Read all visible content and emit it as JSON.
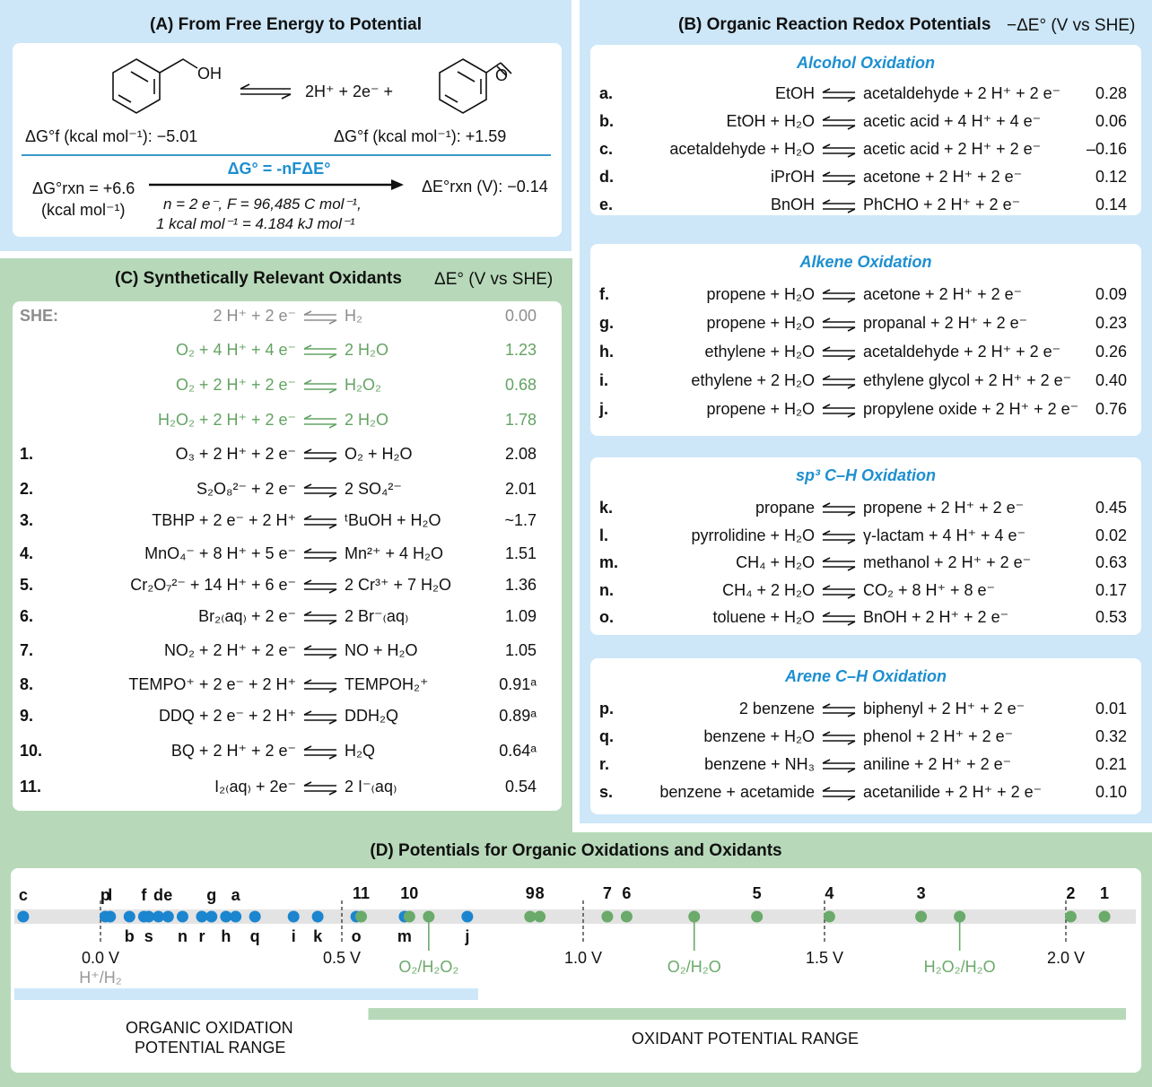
{
  "panel_a": {
    "title": "(A) From Free Energy to Potential",
    "reactant_label": "OH",
    "products_text": "2H⁺ + 2e⁻ +",
    "product_label": "O",
    "dg_reactant": "ΔG°f (kcal mol⁻¹): −5.01",
    "dg_product": "ΔG°f (kcal mol⁻¹): +1.59",
    "dg_rxn": "ΔG°rxn = +6.6",
    "dg_rxn_unit": "(kcal mol⁻¹)",
    "equation": "ΔG° = -nFΔE°",
    "conditions_1": "n = 2 e⁻, F = 96,485 C mol⁻¹,",
    "conditions_2": "1 kcal mol⁻¹ = 4.184 kJ mol⁻¹",
    "de_rxn": "ΔE°rxn (V): −0.14"
  },
  "panel_b": {
    "title": "(B) Organic Reaction Redox Potentials",
    "title_unit": "−ΔE°  (V vs SHE)",
    "groups": [
      {
        "heading": "Alcohol Oxidation",
        "rows": [
          {
            "id": "a.",
            "lhs": "EtOH",
            "rhs": "acetaldehyde + 2 H⁺ + 2 e⁻",
            "val": "0.28"
          },
          {
            "id": "b.",
            "lhs": "EtOH + H₂O",
            "rhs": "acetic acid + 4 H⁺ + 4 e⁻",
            "val": "0.06"
          },
          {
            "id": "c.",
            "lhs": "acetaldehyde + H₂O",
            "rhs": "acetic acid + 2 H⁺ + 2 e⁻",
            "val": "–0.16"
          },
          {
            "id": "d.",
            "lhs": "iPrOH",
            "rhs": "acetone + 2 H⁺ + 2 e⁻",
            "val": "0.12"
          },
          {
            "id": "e.",
            "lhs": "BnOH",
            "rhs": "PhCHO + 2 H⁺ + 2 e⁻",
            "val": "0.14"
          }
        ]
      },
      {
        "heading": "Alkene Oxidation",
        "rows": [
          {
            "id": "f.",
            "lhs": "propene + H₂O",
            "rhs": "acetone + 2 H⁺ + 2 e⁻",
            "val": "0.09"
          },
          {
            "id": "g.",
            "lhs": "propene + H₂O",
            "rhs": "propanal + 2 H⁺ + 2 e⁻",
            "val": "0.23"
          },
          {
            "id": "h.",
            "lhs": "ethylene + H₂O",
            "rhs": "acetaldehyde + 2 H⁺ + 2 e⁻",
            "val": "0.26"
          },
          {
            "id": "i.",
            "lhs": "ethylene + 2 H₂O",
            "rhs": "ethylene glycol + 2 H⁺ + 2 e⁻",
            "val": "0.40"
          },
          {
            "id": "j.",
            "lhs": "propene + H₂O",
            "rhs": "propylene oxide + 2 H⁺ + 2 e⁻",
            "val": "0.76"
          }
        ]
      },
      {
        "heading": "sp³ C–H Oxidation",
        "rows": [
          {
            "id": "k.",
            "lhs": "propane",
            "rhs": "propene + 2 H⁺ + 2 e⁻",
            "val": "0.45"
          },
          {
            "id": "l.",
            "lhs": "pyrrolidine + H₂O",
            "rhs": "γ-lactam + 4 H⁺ + 4 e⁻",
            "val": "0.02"
          },
          {
            "id": "m.",
            "lhs": "CH₄ + H₂O",
            "rhs": "methanol + 2 H⁺ + 2 e⁻",
            "val": "0.63"
          },
          {
            "id": "n.",
            "lhs": "CH₄ + 2 H₂O",
            "rhs": "CO₂ + 8 H⁺ + 8 e⁻",
            "val": "0.17"
          },
          {
            "id": "o.",
            "lhs": "toluene + H₂O",
            "rhs": "BnOH + 2 H⁺ + 2 e⁻",
            "val": "0.53"
          }
        ]
      },
      {
        "heading": "Arene C–H Oxidation",
        "rows": [
          {
            "id": "p.",
            "lhs": "2 benzene",
            "rhs": "biphenyl + 2 H⁺ + 2 e⁻",
            "val": "0.01"
          },
          {
            "id": "q.",
            "lhs": "benzene + H₂O",
            "rhs": "phenol + 2 H⁺ + 2 e⁻",
            "val": "0.32"
          },
          {
            "id": "r.",
            "lhs": "benzene + NH₃",
            "rhs": "aniline + 2 H⁺ + 2 e⁻",
            "val": "0.21"
          },
          {
            "id": "s.",
            "lhs": "benzene + acetamide",
            "rhs": "acetanilide + 2 H⁺ + 2 e⁻",
            "val": "0.10"
          }
        ]
      }
    ]
  },
  "panel_c": {
    "title": "(C) Synthetically Relevant Oxidants",
    "title_unit": "ΔE°  (V vs SHE)",
    "rows": [
      {
        "id": "SHE:",
        "lhs": "2 H⁺ + 2 e⁻",
        "rhs": "H₂",
        "val": "0.00",
        "style": "gray"
      },
      {
        "id": "",
        "lhs": "O₂ + 4 H⁺ + 4 e⁻",
        "rhs": "2 H₂O",
        "val": "1.23",
        "style": "green"
      },
      {
        "id": "",
        "lhs": "O₂ + 2 H⁺ + 2 e⁻",
        "rhs": "H₂O₂",
        "val": "0.68",
        "style": "green"
      },
      {
        "id": "",
        "lhs": "H₂O₂ + 2 H⁺ + 2 e⁻",
        "rhs": "2 H₂O",
        "val": "1.78",
        "style": "green"
      },
      {
        "id": "1.",
        "lhs": "O₃ + 2 H⁺ + 2 e⁻",
        "rhs": "O₂ + H₂O",
        "val": "2.08",
        "style": ""
      },
      {
        "id": "2.",
        "lhs": "S₂O₈²⁻ + 2 e⁻",
        "rhs": "2 SO₄²⁻",
        "val": "2.01",
        "style": ""
      },
      {
        "id": "3.",
        "lhs": "TBHP + 2 e⁻ + 2 H⁺",
        "rhs": "ᵗBuOH + H₂O",
        "val": "~1.7",
        "style": ""
      },
      {
        "id": "4.",
        "lhs": "MnO₄⁻ + 8 H⁺ + 5 e⁻",
        "rhs": "Mn²⁺ + 4 H₂O",
        "val": "1.51",
        "style": ""
      },
      {
        "id": "5.",
        "lhs": "Cr₂O₇²⁻ + 14 H⁺ + 6 e⁻",
        "rhs": "2 Cr³⁺ + 7 H₂O",
        "val": "1.36",
        "style": ""
      },
      {
        "id": "6.",
        "lhs": "Br₂₍aq₎ + 2 e⁻",
        "rhs": "2 Br⁻₍aq₎",
        "val": "1.09",
        "style": ""
      },
      {
        "id": "7.",
        "lhs": "NO₂ + 2 H⁺ + 2 e⁻",
        "rhs": "NO + H₂O",
        "val": "1.05",
        "style": ""
      },
      {
        "id": "8.",
        "lhs": "TEMPO⁺ + 2 e⁻ + 2 H⁺",
        "rhs": "TEMPOH₂⁺",
        "val": "0.91ᵃ",
        "style": ""
      },
      {
        "id": "9.",
        "lhs": "DDQ + 2 e⁻ + 2 H⁺",
        "rhs": "DDH₂Q",
        "val": "0.89ᵃ",
        "style": ""
      },
      {
        "id": "10.",
        "lhs": "BQ + 2 H⁺ + 2 e⁻",
        "rhs": "H₂Q",
        "val": "0.64ᵃ",
        "style": ""
      },
      {
        "id": "11.",
        "lhs": "I₂₍aq₎ + 2e⁻",
        "rhs": "2 I⁻₍aq₎",
        "val": "0.54",
        "style": ""
      }
    ]
  },
  "panel_d": {
    "title": "(D) Potentials for Organic Oxidations and Oxidants",
    "organic_points": [
      {
        "label": "c",
        "v": -0.16,
        "pos": "top"
      },
      {
        "label": "p",
        "v": 0.01,
        "pos": "top"
      },
      {
        "label": "l",
        "v": 0.02,
        "pos": "top"
      },
      {
        "label": "b",
        "v": 0.06,
        "pos": "bottom"
      },
      {
        "label": "f",
        "v": 0.09,
        "pos": "top"
      },
      {
        "label": "s",
        "v": 0.1,
        "pos": "bottom"
      },
      {
        "label": "d",
        "v": 0.12,
        "pos": "top"
      },
      {
        "label": "e",
        "v": 0.14,
        "pos": "top"
      },
      {
        "label": "n",
        "v": 0.17,
        "pos": "bottom"
      },
      {
        "label": "r",
        "v": 0.21,
        "pos": "bottom"
      },
      {
        "label": "g",
        "v": 0.23,
        "pos": "top"
      },
      {
        "label": "h",
        "v": 0.26,
        "pos": "bottom"
      },
      {
        "label": "a",
        "v": 0.28,
        "pos": "top"
      },
      {
        "label": "q",
        "v": 0.32,
        "pos": "bottom"
      },
      {
        "label": "i",
        "v": 0.4,
        "pos": "bottom"
      },
      {
        "label": "k",
        "v": 0.45,
        "pos": "bottom"
      },
      {
        "label": "o",
        "v": 0.53,
        "pos": "bottom"
      },
      {
        "label": "m",
        "v": 0.63,
        "pos": "bottom"
      },
      {
        "label": "j",
        "v": 0.76,
        "pos": "bottom"
      }
    ],
    "oxidant_points": [
      {
        "label": "11",
        "v": 0.54
      },
      {
        "label": "10",
        "v": 0.64
      },
      {
        "label": "",
        "v": 0.68
      },
      {
        "label": "9",
        "v": 0.89
      },
      {
        "label": "8",
        "v": 0.91
      },
      {
        "label": "7",
        "v": 1.05
      },
      {
        "label": "6",
        "v": 1.09
      },
      {
        "label": "",
        "v": 1.23
      },
      {
        "label": "5",
        "v": 1.36
      },
      {
        "label": "4",
        "v": 1.51
      },
      {
        "label": "3",
        "v": 1.7
      },
      {
        "label": "",
        "v": 1.78
      },
      {
        "label": "2",
        "v": 2.01
      },
      {
        "label": "1",
        "v": 2.08
      }
    ],
    "ticks": [
      {
        "v": 0.0,
        "label": "0.0 V"
      },
      {
        "v": 0.5,
        "label": "0.5 V"
      },
      {
        "v": 1.0,
        "label": "1.0 V"
      },
      {
        "v": 1.5,
        "label": "1.5 V"
      },
      {
        "v": 2.0,
        "label": "2.0 V"
      }
    ],
    "ref_markers": [
      {
        "v": 0.68,
        "label": "O₂/H₂O₂"
      },
      {
        "v": 1.23,
        "label": "O₂/H₂O"
      },
      {
        "v": 1.78,
        "label": "H₂O₂/H₂O"
      }
    ],
    "she_label": "H⁺/H₂",
    "organic_range_label_1": "ORGANIC OXIDATION",
    "organic_range_label_2": "POTENTIAL RANGE",
    "oxidant_range_label": "OXIDANT POTENTIAL RANGE",
    "colors": {
      "organic": "#1b85cf",
      "oxidant": "#6aaa6a",
      "she": "#999999"
    }
  }
}
